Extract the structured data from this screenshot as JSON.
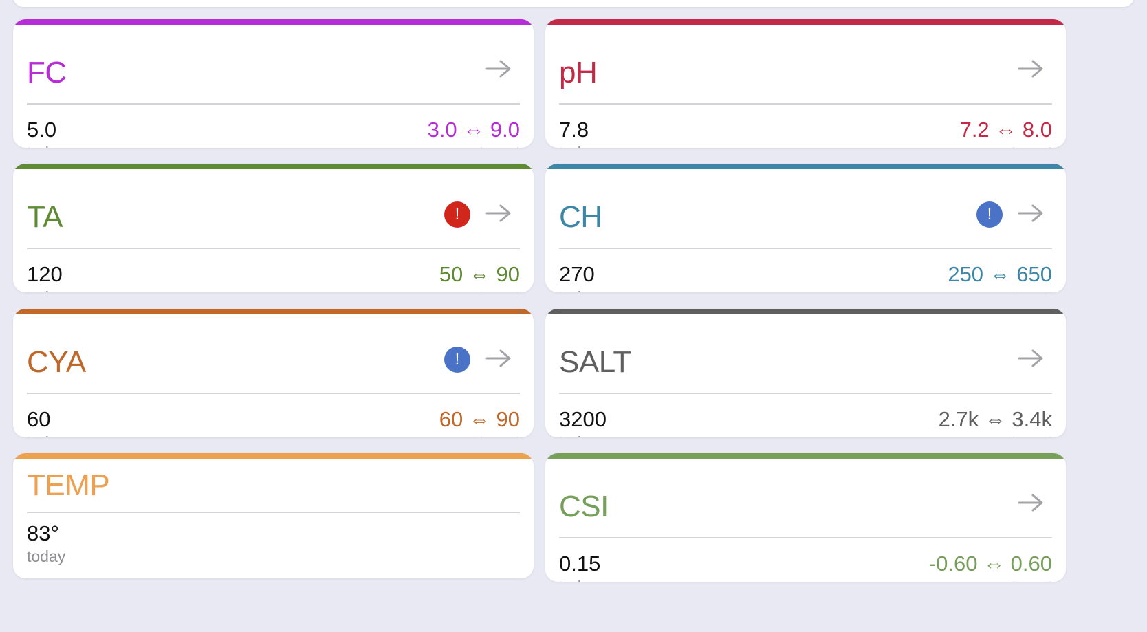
{
  "cards": [
    {
      "title": "FC",
      "color": "#b72ed6",
      "value": "5.0",
      "value_sub": "today",
      "range": "3.0 ⇔ 9.0",
      "range_sub": "target",
      "alert": null
    },
    {
      "title": "pH",
      "color": "#c22a45",
      "value": "7.8",
      "value_sub": "today",
      "range": "7.2 ⇔ 8.0",
      "range_sub": "target",
      "alert": null
    },
    {
      "title": "TA",
      "color": "#5f8a34",
      "value": "120",
      "value_sub": "today",
      "range": "50 ⇔ 90",
      "range_sub": "target",
      "alert": {
        "symbol": "!",
        "color": "#d0261c"
      }
    },
    {
      "title": "CH",
      "color": "#3d87a6",
      "value": "270",
      "value_sub": "today",
      "range": "250 ⇔ 650",
      "range_sub": "target",
      "alert": {
        "symbol": "!",
        "color": "#4a72c6"
      }
    },
    {
      "title": "CYA",
      "color": "#c0682a",
      "value": "60",
      "value_sub": "today",
      "range": "60 ⇔ 90",
      "range_sub": "target",
      "alert": {
        "symbol": "!",
        "color": "#4a72c6"
      }
    },
    {
      "title": "SALT",
      "color": "#5f5f5f",
      "value": "3200",
      "value_sub": "today",
      "range": "2.7k ⇔ 3.4k",
      "range_sub": "target",
      "alert": null
    },
    {
      "title": "TEMP",
      "color": "#eca050",
      "value": "83°",
      "value_sub": "today",
      "range": "",
      "range_sub": "",
      "alert": null,
      "no_arrow": true
    },
    {
      "title": "CSI",
      "color": "#76a05a",
      "value": "0.15",
      "value_sub": "today",
      "range": "-0.60 ⇔ 0.60",
      "range_sub": "target",
      "alert": null
    }
  ],
  "icons": {
    "arrow": "arrow-right-icon",
    "alert": "alert-circle-icon"
  }
}
